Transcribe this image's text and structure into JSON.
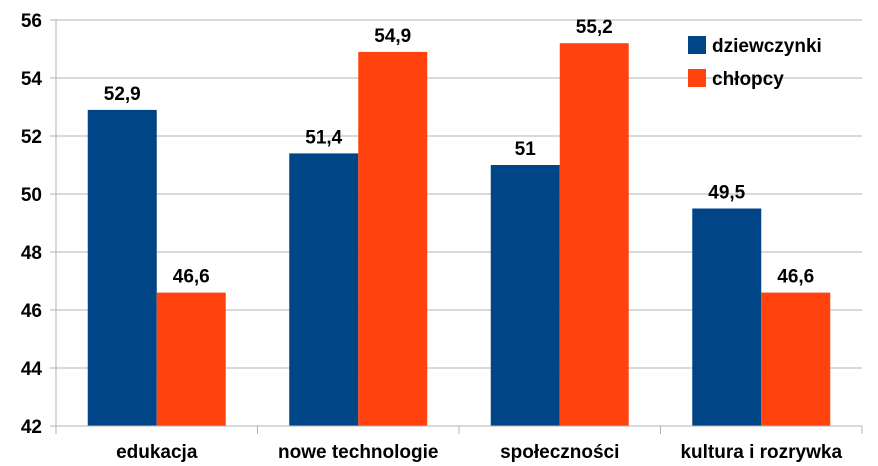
{
  "chart_data": {
    "type": "bar",
    "categories": [
      "edukacja",
      "nowe technologie",
      "społeczności",
      "kultura i rozrywka"
    ],
    "series": [
      {
        "name": "dziewczynki",
        "color": "#004586",
        "values": [
          52.9,
          51.4,
          51,
          49.5
        ],
        "labels": [
          "52,9",
          "51,4",
          "51",
          "49,5"
        ]
      },
      {
        "name": "chłopcy",
        "color": "#ff420e",
        "values": [
          46.6,
          54.9,
          55.2,
          46.6
        ],
        "labels": [
          "46,6",
          "54,9",
          "55,2",
          "46,6"
        ]
      }
    ],
    "ylim": [
      42,
      56
    ],
    "yticks": [
      42,
      44,
      46,
      48,
      50,
      52,
      54,
      56
    ],
    "grid": true,
    "legend": "top-right"
  }
}
